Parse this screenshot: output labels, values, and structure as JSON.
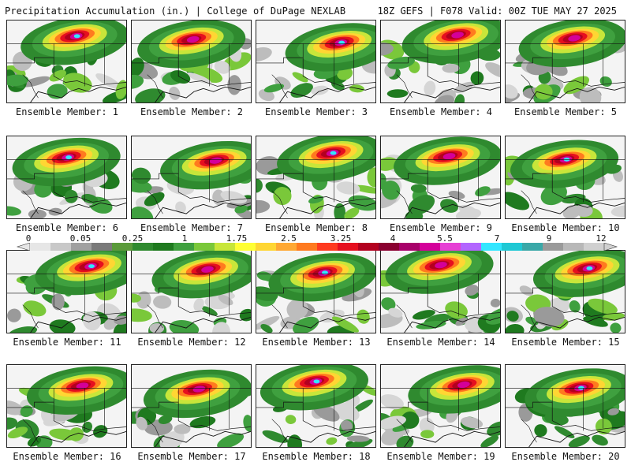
{
  "header": {
    "left": "Precipitation Accumulation (in.) | College of DuPage NEXLAB",
    "right": "18Z GEFS | F078 Valid: 00Z TUE MAY 27 2025"
  },
  "panels": [
    {
      "label": "Ensemble Member: 1"
    },
    {
      "label": "Ensemble Member: 2"
    },
    {
      "label": "Ensemble Member: 3"
    },
    {
      "label": "Ensemble Member: 4"
    },
    {
      "label": "Ensemble Member: 5"
    },
    {
      "label": "Ensemble Member: 6"
    },
    {
      "label": "Ensemble Member: 7"
    },
    {
      "label": "Ensemble Member: 8"
    },
    {
      "label": "Ensemble Member: 9"
    },
    {
      "label": "Ensemble Member: 10"
    },
    {
      "label": "Ensemble Member: 11"
    },
    {
      "label": "Ensemble Member: 12"
    },
    {
      "label": "Ensemble Member: 13"
    },
    {
      "label": "Ensemble Member: 14"
    },
    {
      "label": "Ensemble Member: 15"
    },
    {
      "label": "Ensemble Member: 16"
    },
    {
      "label": "Ensemble Member: 17"
    },
    {
      "label": "Ensemble Member: 18"
    },
    {
      "label": "Ensemble Member: 19"
    },
    {
      "label": "Ensemble Member: 20"
    }
  ],
  "colorbar": {
    "labels": [
      "0",
      "0.05",
      "0.25",
      "1",
      "1.75",
      "2.5",
      "3.25",
      "4",
      "5.5",
      "7",
      "9",
      "12"
    ],
    "colors": [
      "#e6e6e6",
      "#c8c8c8",
      "#a0a0a0",
      "#7a7a7a",
      "#5a9a3a",
      "#2f8a2f",
      "#1f7a1f",
      "#3fa03f",
      "#7ac83a",
      "#c8e63a",
      "#ffff33",
      "#ffd633",
      "#ffa833",
      "#ff7a1f",
      "#ff3a1f",
      "#e60f1f",
      "#b3001f",
      "#8a0030",
      "#a8006a",
      "#d4009a",
      "#e640d4",
      "#b366ff",
      "#33e6ff",
      "#1fc8d4",
      "#3aa8a8",
      "#9a9a9a",
      "#b8b8b8",
      "#d0d0d0"
    ]
  }
}
